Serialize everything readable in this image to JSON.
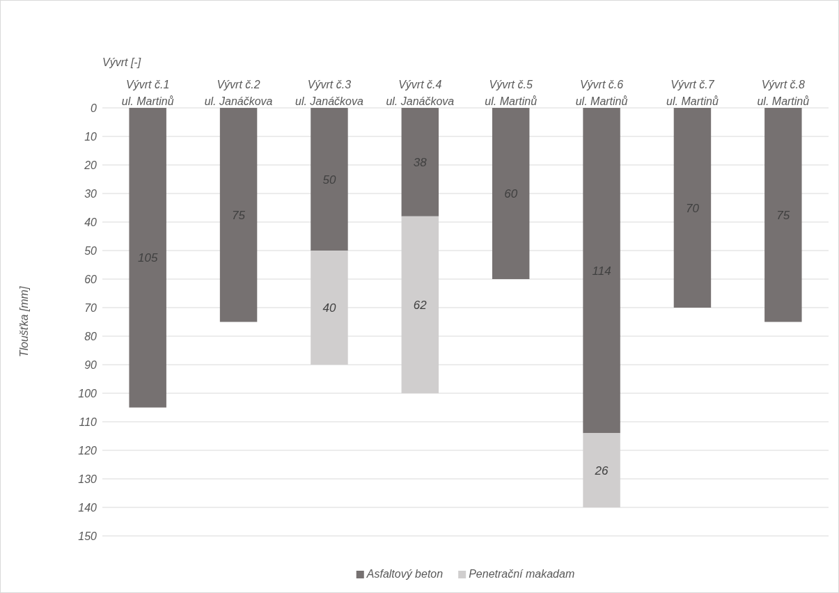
{
  "chart_data": {
    "type": "bar",
    "stacked": true,
    "xlabel": "Vývrt [-]",
    "ylabel": "Tloušťka [mm]",
    "categories": [
      "Vývrt č.1\nul. Martinů",
      "Vývrt č.2\nul. Janáčkova",
      "Vývrt č.3\nul. Janáčkova",
      "Vývrt č.4\nul. Janáčkova",
      "Vývrt č.5\nul. Martinů",
      "Vývrt č.6\nul. Martinů",
      "Vývrt č.7\nul. Martinů",
      "Vývrt č.8\nul. Martinů"
    ],
    "series": [
      {
        "name": "Asfaltový beton",
        "color": "#767171",
        "values": [
          105,
          75,
          50,
          38,
          60,
          114,
          70,
          75
        ]
      },
      {
        "name": "Penetrační makadam",
        "color": "#d0cece",
        "values": [
          null,
          null,
          40,
          62,
          null,
          26,
          null,
          null
        ]
      }
    ],
    "ylim": [
      150,
      0
    ],
    "yticks": [
      0,
      10,
      20,
      30,
      40,
      50,
      60,
      70,
      80,
      90,
      100,
      110,
      120,
      130,
      140,
      150
    ],
    "grid": "y",
    "legend": "bottom",
    "data_labels": true
  }
}
